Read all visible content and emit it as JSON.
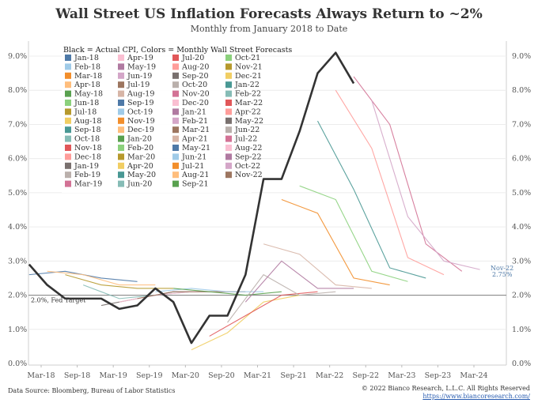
{
  "title": "Wall Street US Inflation Forecasts Always Return to ~2%",
  "subtitle": "Monthly from January 2018 to Date",
  "footer": {
    "source": "Data Source: Bloomberg, Bureau of Labor Statistics",
    "copyright": "© 2022 Bianco Research, L.L.C. All Rights Reserved",
    "url": "https://www.biancoresearch.com/"
  },
  "chart_data": {
    "type": "line",
    "legend_title": "Black = Actual CPI, Colors = Monthly Wall Street Forecasts",
    "legend_placement": "top-left",
    "grid": "horizontal",
    "ylim": [
      0,
      10
    ],
    "yticks": [
      "0.0%",
      "1.0%",
      "2.0%",
      "3.0%",
      "4.0%",
      "5.0%",
      "6.0%",
      "7.0%",
      "8.0%",
      "9.0%"
    ],
    "xticks": [
      "Mar-18",
      "Sep-18",
      "Mar-19",
      "Sep-19",
      "Mar-20",
      "Sep-20",
      "Mar-21",
      "Sep-21",
      "Mar-22",
      "Sep-22",
      "Mar-23",
      "Sep-23",
      "Mar-24"
    ],
    "reference_line": {
      "value": 2.0,
      "label": "2.0%, Fed Target"
    },
    "end_annotation": {
      "label": "Nov-22",
      "value_label": "2.75%"
    },
    "legend_entries": [
      {
        "label": "Jan-18",
        "color": "#4e79a7"
      },
      {
        "label": "Feb-18",
        "color": "#a0cbe8"
      },
      {
        "label": "Mar-18",
        "color": "#f28e2b"
      },
      {
        "label": "Apr-18",
        "color": "#ffbe7d"
      },
      {
        "label": "May-18",
        "color": "#59a14f"
      },
      {
        "label": "Jun-18",
        "color": "#8cd17d"
      },
      {
        "label": "Jul-18",
        "color": "#b6992d"
      },
      {
        "label": "Aug-18",
        "color": "#f1ce63"
      },
      {
        "label": "Sep-18",
        "color": "#499894"
      },
      {
        "label": "Oct-18",
        "color": "#86bcb6"
      },
      {
        "label": "Nov-18",
        "color": "#e15759"
      },
      {
        "label": "Dec-18",
        "color": "#ff9d9a"
      },
      {
        "label": "Jan-19",
        "color": "#79706e"
      },
      {
        "label": "Feb-19",
        "color": "#bab0ac"
      },
      {
        "label": "Mar-19",
        "color": "#d37295"
      },
      {
        "label": "Apr-19",
        "color": "#fabfd2"
      },
      {
        "label": "May-19",
        "color": "#b07aa1"
      },
      {
        "label": "Jun-19",
        "color": "#d4a6c8"
      },
      {
        "label": "Jul-19",
        "color": "#9d7660"
      },
      {
        "label": "Aug-19",
        "color": "#d7b5a6"
      },
      {
        "label": "Sep-19",
        "color": "#4e79a7"
      },
      {
        "label": "Oct-19",
        "color": "#a0cbe8"
      },
      {
        "label": "Nov-19",
        "color": "#f28e2b"
      },
      {
        "label": "Dec-19",
        "color": "#ffbe7d"
      },
      {
        "label": "Jan-20",
        "color": "#59a14f"
      },
      {
        "label": "Feb-20",
        "color": "#8cd17d"
      },
      {
        "label": "Mar-20",
        "color": "#b6992d"
      },
      {
        "label": "Apr-20",
        "color": "#f1ce63"
      },
      {
        "label": "May-20",
        "color": "#499894"
      },
      {
        "label": "Jun-20",
        "color": "#86bcb6"
      },
      {
        "label": "Jul-20",
        "color": "#e15759"
      },
      {
        "label": "Aug-20",
        "color": "#ff9d9a"
      },
      {
        "label": "Sep-20",
        "color": "#79706e"
      },
      {
        "label": "Oct-20",
        "color": "#bab0ac"
      },
      {
        "label": "Nov-20",
        "color": "#d37295"
      },
      {
        "label": "Dec-20",
        "color": "#fabfd2"
      },
      {
        "label": "Jan-21",
        "color": "#b07aa1"
      },
      {
        "label": "Feb-21",
        "color": "#d4a6c8"
      },
      {
        "label": "Mar-21",
        "color": "#9d7660"
      },
      {
        "label": "Apr-21",
        "color": "#d7b5a6"
      },
      {
        "label": "May-21",
        "color": "#4e79a7"
      },
      {
        "label": "Jun-21",
        "color": "#a0cbe8"
      },
      {
        "label": "Jul-21",
        "color": "#f28e2b"
      },
      {
        "label": "Aug-21",
        "color": "#ffbe7d"
      },
      {
        "label": "Sep-21",
        "color": "#59a14f"
      },
      {
        "label": "Oct-21",
        "color": "#8cd17d"
      },
      {
        "label": "Nov-21",
        "color": "#b6992d"
      },
      {
        "label": "Dec-21",
        "color": "#f1ce63"
      },
      {
        "label": "Jan-22",
        "color": "#499894"
      },
      {
        "label": "Feb-22",
        "color": "#86bcb6"
      },
      {
        "label": "Mar-22",
        "color": "#e15759"
      },
      {
        "label": "Apr-22",
        "color": "#ff9d9a"
      },
      {
        "label": "May-22",
        "color": "#79706e"
      },
      {
        "label": "Jun-22",
        "color": "#bab0ac"
      },
      {
        "label": "Jul-22",
        "color": "#d37295"
      },
      {
        "label": "Aug-22",
        "color": "#fabfd2"
      },
      {
        "label": "Sep-22",
        "color": "#b07aa1"
      },
      {
        "label": "Oct-22",
        "color": "#d4a6c8"
      },
      {
        "label": "Nov-22",
        "color": "#9d7660"
      }
    ],
    "actual_cpi": {
      "name": "Actual CPI",
      "color": "#333333",
      "points": [
        [
          "2018-01",
          2.9
        ],
        [
          "2018-04",
          2.3
        ],
        [
          "2018-07",
          1.9
        ],
        [
          "2018-10",
          1.9
        ],
        [
          "2019-01",
          1.9
        ],
        [
          "2019-04",
          1.6
        ],
        [
          "2019-07",
          1.7
        ],
        [
          "2019-10",
          2.2
        ],
        [
          "2020-01",
          1.8
        ],
        [
          "2020-04",
          0.6
        ],
        [
          "2020-07",
          1.4
        ],
        [
          "2020-10",
          1.4
        ],
        [
          "2021-01",
          2.6
        ],
        [
          "2021-04",
          5.4
        ],
        [
          "2021-07",
          5.4
        ],
        [
          "2021-10",
          6.8
        ],
        [
          "2022-01",
          8.5
        ],
        [
          "2022-04",
          9.1
        ],
        [
          "2022-07",
          8.2
        ]
      ]
    },
    "forecast_series": [
      {
        "start": "2018-01",
        "points": [
          [
            "2018-01",
            2.6
          ],
          [
            "2018-07",
            2.7
          ],
          [
            "2019-01",
            2.5
          ],
          [
            "2019-07",
            2.4
          ]
        ]
      },
      {
        "start": "2018-04",
        "points": [
          [
            "2018-04",
            2.7
          ],
          [
            "2018-10",
            2.6
          ],
          [
            "2019-04",
            2.3
          ],
          [
            "2019-10",
            2.3
          ]
        ]
      },
      {
        "start": "2018-07",
        "points": [
          [
            "2018-07",
            2.6
          ],
          [
            "2019-01",
            2.3
          ],
          [
            "2019-07",
            2.2
          ],
          [
            "2020-01",
            2.2
          ]
        ]
      },
      {
        "start": "2018-10",
        "points": [
          [
            "2018-10",
            2.3
          ],
          [
            "2019-04",
            1.9
          ],
          [
            "2019-10",
            2.0
          ],
          [
            "2020-04",
            2.1
          ]
        ]
      },
      {
        "start": "2019-01",
        "points": [
          [
            "2019-01",
            1.7
          ],
          [
            "2019-07",
            1.9
          ],
          [
            "2020-01",
            2.1
          ],
          [
            "2020-07",
            2.1
          ]
        ]
      },
      {
        "start": "2019-04",
        "points": [
          [
            "2019-04",
            1.8
          ],
          [
            "2019-10",
            2.0
          ],
          [
            "2020-04",
            2.1
          ],
          [
            "2020-10",
            2.1
          ]
        ]
      },
      {
        "start": "2019-07",
        "points": [
          [
            "2019-07",
            1.9
          ],
          [
            "2020-01",
            2.1
          ],
          [
            "2020-07",
            2.1
          ],
          [
            "2021-01",
            2.1
          ]
        ]
      },
      {
        "start": "2019-10",
        "points": [
          [
            "2019-10",
            2.1
          ],
          [
            "2020-04",
            2.2
          ],
          [
            "2020-10",
            2.1
          ],
          [
            "2021-04",
            2.1
          ]
        ]
      },
      {
        "start": "2020-01",
        "points": [
          [
            "2020-01",
            2.2
          ],
          [
            "2020-07",
            2.1
          ],
          [
            "2021-01",
            2.0
          ],
          [
            "2021-07",
            2.1
          ]
        ]
      },
      {
        "start": "2020-04",
        "points": [
          [
            "2020-04",
            0.4
          ],
          [
            "2020-10",
            0.9
          ],
          [
            "2021-04",
            1.8
          ],
          [
            "2021-10",
            2.0
          ]
        ]
      },
      {
        "start": "2020-07",
        "points": [
          [
            "2020-07",
            0.8
          ],
          [
            "2021-01",
            1.4
          ],
          [
            "2021-07",
            2.0
          ],
          [
            "2022-01",
            2.1
          ]
        ]
      },
      {
        "start": "2020-10",
        "points": [
          [
            "2020-10",
            1.2
          ],
          [
            "2021-04",
            2.6
          ],
          [
            "2021-10",
            2.0
          ],
          [
            "2022-04",
            2.1
          ]
        ]
      },
      {
        "start": "2021-01",
        "points": [
          [
            "2021-01",
            1.8
          ],
          [
            "2021-07",
            3.0
          ],
          [
            "2022-01",
            2.2
          ],
          [
            "2022-07",
            2.2
          ]
        ]
      },
      {
        "start": "2021-04",
        "points": [
          [
            "2021-04",
            3.5
          ],
          [
            "2021-10",
            3.2
          ],
          [
            "2022-04",
            2.3
          ],
          [
            "2022-10",
            2.2
          ]
        ]
      },
      {
        "start": "2021-07",
        "points": [
          [
            "2021-07",
            4.8
          ],
          [
            "2022-01",
            4.4
          ],
          [
            "2022-07",
            2.5
          ],
          [
            "2023-01",
            2.3
          ]
        ]
      },
      {
        "start": "2021-10",
        "points": [
          [
            "2021-10",
            5.2
          ],
          [
            "2022-04",
            4.8
          ],
          [
            "2022-10",
            2.7
          ],
          [
            "2023-04",
            2.4
          ]
        ]
      },
      {
        "start": "2022-01",
        "points": [
          [
            "2022-01",
            7.1
          ],
          [
            "2022-07",
            5.1
          ],
          [
            "2023-01",
            2.8
          ],
          [
            "2023-07",
            2.5
          ]
        ]
      },
      {
        "start": "2022-04",
        "points": [
          [
            "2022-04",
            8.0
          ],
          [
            "2022-10",
            6.3
          ],
          [
            "2023-04",
            3.1
          ],
          [
            "2023-10",
            2.6
          ]
        ]
      },
      {
        "start": "2022-07",
        "points": [
          [
            "2022-07",
            8.4
          ],
          [
            "2023-01",
            7.0
          ],
          [
            "2023-07",
            3.5
          ],
          [
            "2024-01",
            2.7
          ]
        ]
      },
      {
        "start": "2022-10",
        "points": [
          [
            "2022-10",
            7.7
          ],
          [
            "2023-04",
            4.3
          ],
          [
            "2023-10",
            3.0
          ],
          [
            "2024-04",
            2.75
          ]
        ]
      }
    ]
  }
}
